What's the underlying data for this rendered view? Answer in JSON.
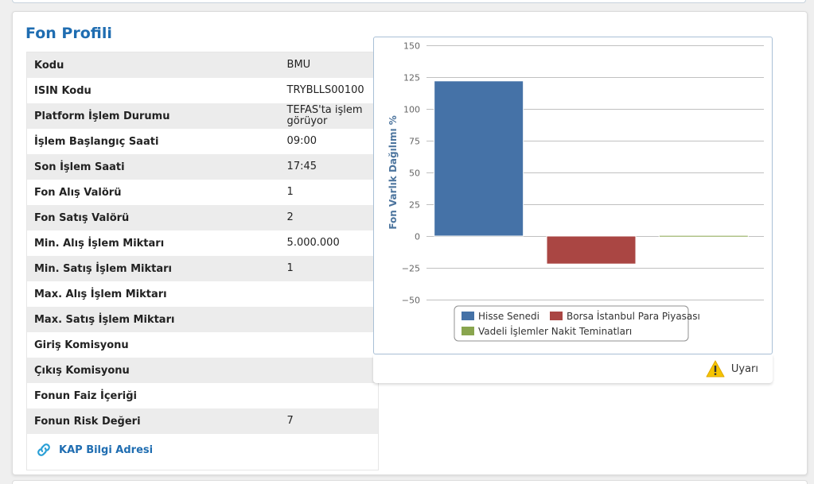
{
  "section": {
    "title": "Fon Profili"
  },
  "info_rows": [
    {
      "label": "Kodu",
      "value": "BMU"
    },
    {
      "label": "ISIN Kodu",
      "value": "TRYBLLS00100"
    },
    {
      "label": "Platform İşlem Durumu",
      "value": "TEFAS'ta işlem görüyor"
    },
    {
      "label": "İşlem Başlangıç Saati",
      "value": "09:00"
    },
    {
      "label": "Son İşlem Saati",
      "value": "17:45"
    },
    {
      "label": "Fon Alış Valörü",
      "value": "1"
    },
    {
      "label": "Fon Satış Valörü",
      "value": "2"
    },
    {
      "label": "Min. Alış İşlem Miktarı",
      "value": "5.000.000"
    },
    {
      "label": "Min. Satış İşlem Miktarı",
      "value": "1"
    },
    {
      "label": "Max. Alış İşlem Miktarı",
      "value": ""
    },
    {
      "label": "Max. Satış İşlem Miktarı",
      "value": ""
    },
    {
      "label": "Giriş Komisyonu",
      "value": ""
    },
    {
      "label": "Çıkış Komisyonu",
      "value": ""
    },
    {
      "label": "Fonun Faiz İçeriği",
      "value": ""
    },
    {
      "label": "Fonun Risk Değeri",
      "value": "7"
    }
  ],
  "kap_link": {
    "label": "KAP Bilgi Adresi",
    "icon": "link-icon"
  },
  "chart_footer": {
    "warning_label": "Uyarı",
    "icon": "warning-icon"
  },
  "chart_data": {
    "type": "bar",
    "title": "",
    "xlabel": "",
    "ylabel": "Fon Varlık Dağılımı %",
    "ylim": [
      -50,
      150
    ],
    "yticks": [
      150,
      125,
      100,
      75,
      50,
      25,
      0,
      -25,
      -50
    ],
    "grid": true,
    "legend_position": "bottom",
    "series": [
      {
        "name": "Hisse Senedi",
        "value": 122,
        "color": "#4572a7"
      },
      {
        "name": "Borsa İstanbul Para Piyasası",
        "value": -22,
        "color": "#aa4643"
      },
      {
        "name": "Vadeli İşlemler Nakit Teminatları",
        "value": 0.5,
        "color": "#89a54e"
      }
    ]
  }
}
